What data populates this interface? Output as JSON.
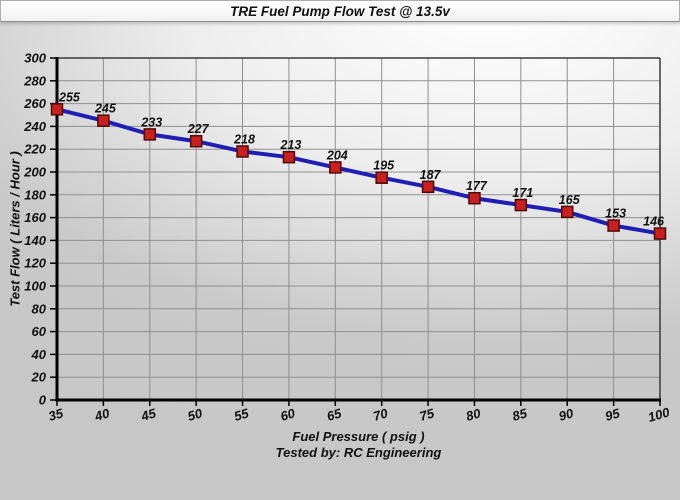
{
  "title_bar": {
    "title": "TRE Fuel Pump Flow Test @ 13.5v"
  },
  "chart_data": {
    "type": "line",
    "title": "TRE Fuel Pump Flow Test @ 13.5v",
    "x": [
      35,
      40,
      45,
      50,
      55,
      60,
      65,
      70,
      75,
      80,
      85,
      90,
      95,
      100
    ],
    "series": [
      {
        "name": "Test Flow",
        "values": [
          255,
          245,
          233,
          227,
          218,
          213,
          204,
          195,
          187,
          177,
          171,
          165,
          153,
          146
        ]
      }
    ],
    "data_labels": [
      255,
      245,
      233,
      227,
      218,
      213,
      204,
      195,
      187,
      177,
      171,
      165,
      153,
      146
    ],
    "xlabel": "Fuel Pressure ( psig )",
    "ylabel": "Test Flow ( Liters / Hour )",
    "footer": "Tested by: RC Engineering",
    "xlim": [
      35,
      100
    ],
    "ylim": [
      0,
      300
    ],
    "x_tick_step": 5,
    "y_tick_step": 20,
    "grid": true,
    "legend": "none",
    "colors": {
      "line": "#1e1eb4",
      "marker_fill": "#c9201d",
      "marker_border": "#4d0a0a",
      "grid": "#8f8f8f",
      "axis": "#000000",
      "plot_border": "#3a3a3a",
      "text": "#111111"
    }
  }
}
